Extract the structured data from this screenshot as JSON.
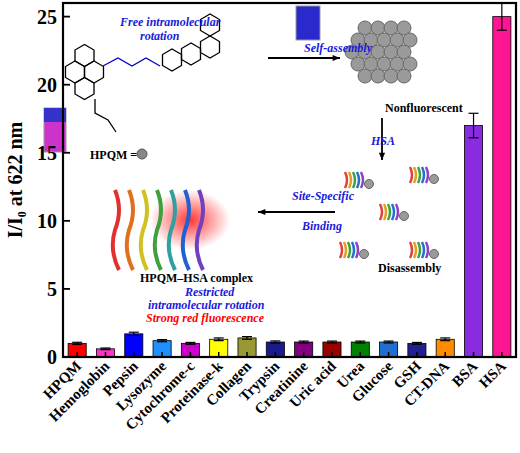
{
  "chart_data": {
    "type": "bar",
    "y_label": "I/I₀ at 622 nm",
    "categories": [
      "HPQM",
      "Hemoglobin",
      "Pepsin",
      "Lysozyme",
      "Cytochrome-c",
      "Proteinase-k",
      "Collagen",
      "Trypsin",
      "Creatinine",
      "Uric acid",
      "Urea",
      "Glucose",
      "GSH",
      "CT-DNA",
      "BSA",
      "HSA"
    ],
    "values": [
      1.0,
      0.6,
      1.7,
      1.2,
      1.0,
      1.3,
      1.4,
      1.1,
      1.1,
      1.1,
      1.1,
      1.1,
      1.0,
      1.3,
      17.0,
      25.0
    ],
    "errors": [
      0.08,
      0.06,
      0.12,
      0.08,
      0.07,
      0.1,
      0.1,
      0.08,
      0.07,
      0.07,
      0.07,
      0.07,
      0.07,
      0.1,
      0.9,
      1.0
    ],
    "colors": [
      "#ff0000",
      "#ff33cc",
      "#0000ff",
      "#1e90ff",
      "#cc00cc",
      "#ffff00",
      "#999933",
      "#1a1a8c",
      "#800080",
      "#990000",
      "#008000",
      "#1f6fd0",
      "#1f1f8f",
      "#ff8c00",
      "#8a2be2",
      "#ff1493"
    ],
    "ylim": [
      0,
      26
    ],
    "yticks": [
      0,
      5,
      10,
      15,
      20,
      25
    ],
    "grid": false,
    "annotations": [
      {
        "text": "Free intramolecular",
        "color": "#1a1adc"
      },
      {
        "text": "rotation",
        "color": "#1a1adc"
      },
      {
        "text": "HPQM =",
        "color": "#000000"
      },
      {
        "text": "Self-assembly",
        "color": "#1a1adc"
      },
      {
        "text": "Nonfluorescent",
        "color": "#000000"
      },
      {
        "text": "HSA",
        "color": "#1a1adc"
      },
      {
        "text": "Disassembly",
        "color": "#000000"
      },
      {
        "text": "Site-Specific",
        "color": "#1a1adc"
      },
      {
        "text": "Binding",
        "color": "#1a1adc"
      },
      {
        "text": "HPQM–HSA complex",
        "color": "#000000"
      },
      {
        "text": "Restricted",
        "color": "#1a1adc"
      },
      {
        "text": "intramolecular rotation",
        "color": "#1a1adc"
      },
      {
        "text": "Strong red fluorescence",
        "color": "#ff0000"
      }
    ]
  }
}
